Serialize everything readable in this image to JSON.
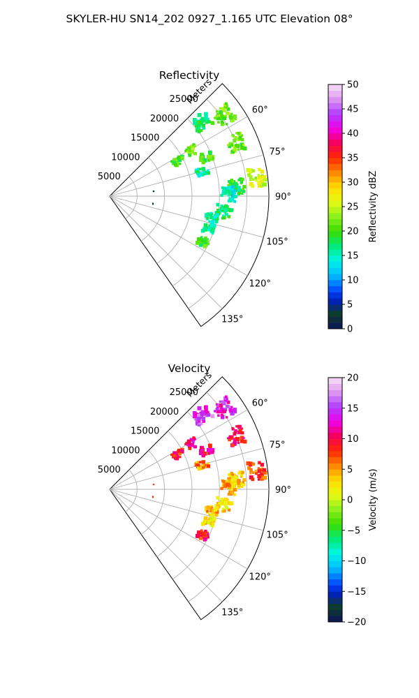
{
  "figure": {
    "suptitle": "SKYLER-HU  SN14_202  0927_1.165 UTC Elevation 08°"
  },
  "chart_data": [
    {
      "type": "heatmap",
      "subtype": "polar-sector",
      "title": "Reflectivity",
      "radial_label": "Meters",
      "r_ticks": [
        5000,
        10000,
        15000,
        20000,
        25000
      ],
      "rlim": [
        0,
        29000
      ],
      "theta_ticks": [
        "60°",
        "75°",
        "90°",
        "105°",
        "120°",
        "135°"
      ],
      "theta_tick_values": [
        60,
        75,
        90,
        105,
        120,
        135
      ],
      "theta_range_deg": [
        45,
        145
      ],
      "grid": true,
      "colorbar": {
        "label": "Reflectivity dBZ",
        "ticks": [
          0,
          5,
          10,
          15,
          20,
          25,
          30,
          35,
          40,
          45,
          50
        ],
        "range": [
          0,
          50
        ]
      },
      "echoes": [
        {
          "az": 51,
          "range_m": 21500,
          "value": 18
        },
        {
          "az": 55,
          "range_m": 25500,
          "value": 22
        },
        {
          "az": 61,
          "range_m": 17000,
          "value": 22
        },
        {
          "az": 63,
          "range_m": 14000,
          "value": 20
        },
        {
          "az": 67,
          "range_m": 25000,
          "value": 22
        },
        {
          "az": 68,
          "range_m": 19000,
          "value": 20
        },
        {
          "az": 75,
          "range_m": 17500,
          "value": 16
        },
        {
          "az": 83,
          "range_m": 27000,
          "value": 25
        },
        {
          "az": 86,
          "range_m": 23000,
          "value": 19
        },
        {
          "az": 89,
          "range_m": 22000,
          "value": 14
        },
        {
          "az": 98,
          "range_m": 21000,
          "value": 18
        },
        {
          "az": 102,
          "range_m": 19000,
          "value": 16
        },
        {
          "az": 108,
          "range_m": 19000,
          "value": 17
        },
        {
          "az": 116,
          "range_m": 19000,
          "value": 20
        },
        {
          "az": 84,
          "range_m": 8000,
          "value": 4
        },
        {
          "az": 100,
          "range_m": 8000,
          "value": 4
        }
      ]
    },
    {
      "type": "heatmap",
      "subtype": "polar-sector",
      "title": "Velocity",
      "radial_label": "Meters",
      "r_ticks": [
        5000,
        10000,
        15000,
        20000,
        25000
      ],
      "rlim": [
        0,
        29000
      ],
      "theta_ticks": [
        "60°",
        "75°",
        "90°",
        "105°",
        "120°",
        "135°"
      ],
      "theta_tick_values": [
        60,
        75,
        90,
        105,
        120,
        135
      ],
      "theta_range_deg": [
        45,
        145
      ],
      "grid": true,
      "colorbar": {
        "label": "Velocity (m/s)",
        "ticks": [
          -20,
          -15,
          -10,
          -5,
          0,
          5,
          10,
          15,
          20
        ],
        "range": [
          -20,
          20
        ]
      },
      "echoes": [
        {
          "az": 51,
          "range_m": 21500,
          "value": 15
        },
        {
          "az": 55,
          "range_m": 25500,
          "value": 14
        },
        {
          "az": 61,
          "range_m": 17000,
          "value": 11
        },
        {
          "az": 63,
          "range_m": 14000,
          "value": 9
        },
        {
          "az": 67,
          "range_m": 25000,
          "value": 10
        },
        {
          "az": 68,
          "range_m": 19000,
          "value": 10
        },
        {
          "az": 75,
          "range_m": 17500,
          "value": 6
        },
        {
          "az": 83,
          "range_m": 27000,
          "value": 7
        },
        {
          "az": 86,
          "range_m": 23000,
          "value": 3
        },
        {
          "az": 89,
          "range_m": 22000,
          "value": 4
        },
        {
          "az": 98,
          "range_m": 21000,
          "value": 3
        },
        {
          "az": 102,
          "range_m": 19000,
          "value": 4
        },
        {
          "az": 108,
          "range_m": 19000,
          "value": 3
        },
        {
          "az": 116,
          "range_m": 19000,
          "value": 9
        },
        {
          "az": 84,
          "range_m": 8000,
          "value": 9
        },
        {
          "az": 100,
          "range_m": 8000,
          "value": 9
        }
      ]
    }
  ]
}
